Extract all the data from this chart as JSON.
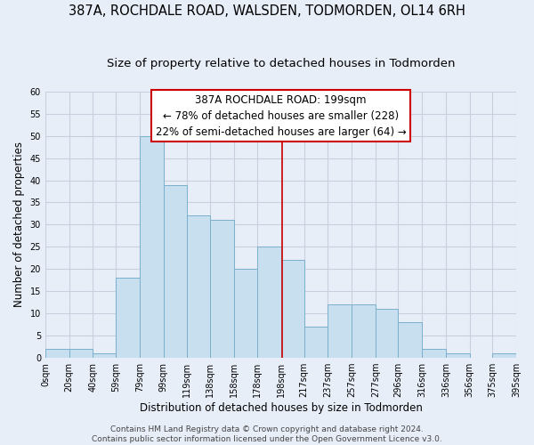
{
  "title": "387A, ROCHDALE ROAD, WALSDEN, TODMORDEN, OL14 6RH",
  "subtitle": "Size of property relative to detached houses in Todmorden",
  "xlabel": "Distribution of detached houses by size in Todmorden",
  "ylabel": "Number of detached properties",
  "bin_edges": [
    0,
    20,
    40,
    59,
    79,
    99,
    119,
    138,
    158,
    178,
    198,
    217,
    237,
    257,
    277,
    296,
    316,
    336,
    356,
    375,
    395
  ],
  "bin_counts": [
    2,
    2,
    1,
    18,
    50,
    39,
    32,
    31,
    20,
    25,
    22,
    7,
    12,
    12,
    11,
    8,
    2,
    1,
    0,
    1
  ],
  "bar_color": "#c8dff0",
  "bar_edgecolor": "#7aafcc",
  "vline_x": 199,
  "vline_color": "#cc0000",
  "annotation_line1": "387A ROCHDALE ROAD: 199sqm",
  "annotation_line2": "← 78% of detached houses are smaller (228)",
  "annotation_line3": "22% of semi-detached houses are larger (64) →",
  "annotation_box_edgecolor": "#cc0000",
  "ylim": [
    0,
    60
  ],
  "yticks": [
    0,
    5,
    10,
    15,
    20,
    25,
    30,
    35,
    40,
    45,
    50,
    55,
    60
  ],
  "xtick_labels": [
    "0sqm",
    "20sqm",
    "40sqm",
    "59sqm",
    "79sqm",
    "99sqm",
    "119sqm",
    "138sqm",
    "158sqm",
    "178sqm",
    "198sqm",
    "217sqm",
    "237sqm",
    "257sqm",
    "277sqm",
    "296sqm",
    "316sqm",
    "336sqm",
    "356sqm",
    "375sqm",
    "395sqm"
  ],
  "footer_text": "Contains HM Land Registry data © Crown copyright and database right 2024.\nContains public sector information licensed under the Open Government Licence v3.0.",
  "background_color": "#e8eef8",
  "plot_bg_color": "#e8eef8",
  "grid_color": "#c8d0e0",
  "title_fontsize": 10.5,
  "subtitle_fontsize": 9.5,
  "axis_label_fontsize": 8.5,
  "tick_fontsize": 7,
  "annotation_fontsize": 8.5,
  "footer_fontsize": 6.5
}
